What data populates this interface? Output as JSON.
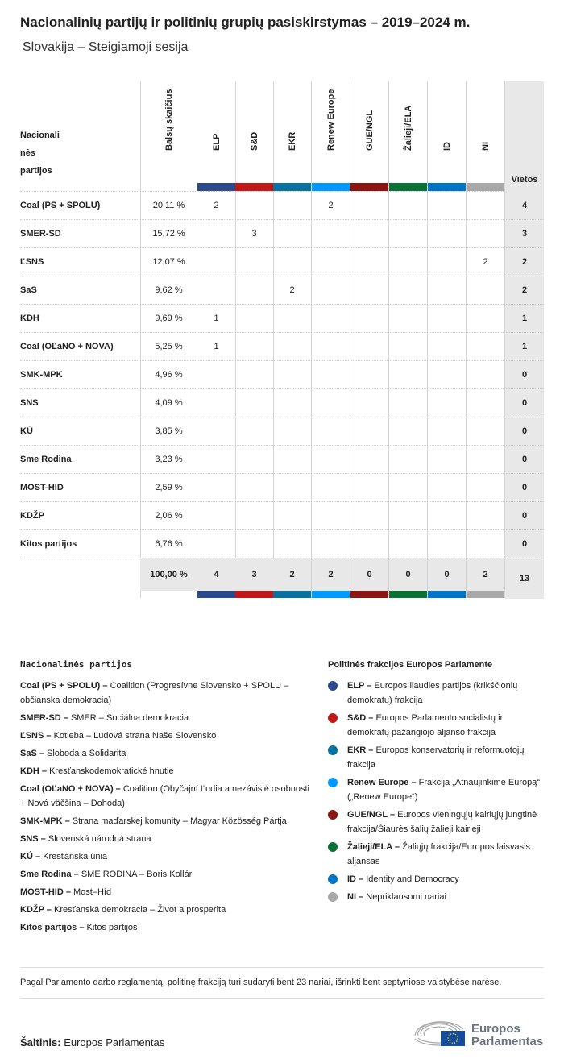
{
  "title": "Nacionalinių partijų ir politinių grupių pasiskirstymas – 2019–2024 m.",
  "subtitle": "Slovakija – Steigiamoji sesija",
  "table": {
    "header_party": "Nacionali nės partijos",
    "header_votes": "Balsų skaičius",
    "header_seats": "Vietos",
    "groups": [
      {
        "label": "ELP",
        "color": "#2b4a8c"
      },
      {
        "label": "S&D",
        "color": "#c1191a"
      },
      {
        "label": "EKR",
        "color": "#0a72a0"
      },
      {
        "label": "Renew Europe",
        "color": "#0099ff"
      },
      {
        "label": "GUE/NGL",
        "color": "#8a1513"
      },
      {
        "label": "Žalieji/ELA",
        "color": "#0a7235"
      },
      {
        "label": "ID",
        "color": "#0075c6"
      },
      {
        "label": "NI",
        "color": "#a8a8a8"
      }
    ],
    "rows": [
      {
        "party": "Coal (PS + SPOLU)",
        "votes": "20,11 %",
        "cells": [
          "2",
          "",
          "",
          "2",
          "",
          "",
          "",
          ""
        ],
        "seats": "4"
      },
      {
        "party": "SMER-SD",
        "votes": "15,72 %",
        "cells": [
          "",
          "3",
          "",
          "",
          "",
          "",
          "",
          ""
        ],
        "seats": "3"
      },
      {
        "party": "ĽSNS",
        "votes": "12,07 %",
        "cells": [
          "",
          "",
          "",
          "",
          "",
          "",
          "",
          "2"
        ],
        "seats": "2"
      },
      {
        "party": "SaS",
        "votes": "9,62 %",
        "cells": [
          "",
          "",
          "2",
          "",
          "",
          "",
          "",
          ""
        ],
        "seats": "2"
      },
      {
        "party": "KDH",
        "votes": "9,69 %",
        "cells": [
          "1",
          "",
          "",
          "",
          "",
          "",
          "",
          ""
        ],
        "seats": "1"
      },
      {
        "party": "Coal (OĽaNO + NOVA)",
        "votes": "5,25 %",
        "cells": [
          "1",
          "",
          "",
          "",
          "",
          "",
          "",
          ""
        ],
        "seats": "1"
      },
      {
        "party": "SMK-MPK",
        "votes": "4,96 %",
        "cells": [
          "",
          "",
          "",
          "",
          "",
          "",
          "",
          ""
        ],
        "seats": "0"
      },
      {
        "party": "SNS",
        "votes": "4,09 %",
        "cells": [
          "",
          "",
          "",
          "",
          "",
          "",
          "",
          ""
        ],
        "seats": "0"
      },
      {
        "party": "KÚ",
        "votes": "3,85 %",
        "cells": [
          "",
          "",
          "",
          "",
          "",
          "",
          "",
          ""
        ],
        "seats": "0"
      },
      {
        "party": "Sme Rodina",
        "votes": "3,23 %",
        "cells": [
          "",
          "",
          "",
          "",
          "",
          "",
          "",
          ""
        ],
        "seats": "0"
      },
      {
        "party": "MOST-HID",
        "votes": "2,59 %",
        "cells": [
          "",
          "",
          "",
          "",
          "",
          "",
          "",
          ""
        ],
        "seats": "0"
      },
      {
        "party": "KDŽP",
        "votes": "2,06 %",
        "cells": [
          "",
          "",
          "",
          "",
          "",
          "",
          "",
          ""
        ],
        "seats": "0"
      },
      {
        "party": "Kitos partijos",
        "votes": "6,76 %",
        "cells": [
          "",
          "",
          "",
          "",
          "",
          "",
          "",
          ""
        ],
        "seats": "0"
      }
    ],
    "totals": {
      "votes": "100,00 %",
      "cells": [
        "4",
        "3",
        "2",
        "2",
        "0",
        "0",
        "0",
        "2"
      ],
      "seats": "13"
    }
  },
  "legend_parties": {
    "title": "Nacionalinės partijos",
    "items": [
      {
        "abbr": "Coal (PS + SPOLU) –",
        "name": "Coalition (Progresívne Slovensko + SPOLU – občianska demokracia)"
      },
      {
        "abbr": "SMER-SD –",
        "name": "SMER – Sociálna demokracia"
      },
      {
        "abbr": "ĽSNS –",
        "name": "Kotleba – Ľudová strana Naše Slovensko"
      },
      {
        "abbr": "SaS –",
        "name": "Sloboda a Solidarita"
      },
      {
        "abbr": "KDH –",
        "name": "Kresťanskodemokratické hnutie"
      },
      {
        "abbr": "Coal (OĽaNO + NOVA) –",
        "name": "Coalition (Obyčajní Ľudia a nezávislé osobnosti + Nová väčšina – Dohoda)"
      },
      {
        "abbr": "SMK-MPK –",
        "name": "Strana maďarskej komunity – Magyar Közösség Pártja"
      },
      {
        "abbr": "SNS –",
        "name": "Slovenská národná strana"
      },
      {
        "abbr": "KÚ –",
        "name": "Kresťanská únia"
      },
      {
        "abbr": "Sme Rodina –",
        "name": "SME RODINA – Boris Kollár"
      },
      {
        "abbr": "MOST-HID –",
        "name": "Most–Híd"
      },
      {
        "abbr": "KDŽP –",
        "name": "Kresťanská demokracia – Život a prosperita"
      },
      {
        "abbr": "Kitos partijos –",
        "name": "Kitos partijos"
      }
    ]
  },
  "legend_groups": {
    "title": "Politinės frakcijos Europos Parlamente",
    "items": [
      {
        "abbr": "ELP –",
        "name": "Europos liaudies partijos (krikščionių demokratų) frakcija"
      },
      {
        "abbr": "S&D –",
        "name": "Europos Parlamento socialistų ir demokratų pažangiojo aljanso frakcija"
      },
      {
        "abbr": "EKR –",
        "name": "Europos konservatorių ir reformuotojų frakcija"
      },
      {
        "abbr": "Renew Europe –",
        "name": "Frakcija „Atnaujinkime Europą“ („Renew Europe“)"
      },
      {
        "abbr": "GUE/NGL –",
        "name": "Europos vieningųjų kairiųjų jungtinė frakcija/Šiaurės šalių žalieji kairieji"
      },
      {
        "abbr": "Žalieji/ELA –",
        "name": "Žaliųjų frakcija/Europos laisvasis aljansas"
      },
      {
        "abbr": "ID –",
        "name": "Identity and Democracy"
      },
      {
        "abbr": "NI –",
        "name": "Nepriklausomi nariai"
      }
    ]
  },
  "note": "Pagal Parlamento darbo reglamentą, politinę frakciją turi sudaryti bent 23 nariai, išrinkti bent septyniose valstybėse narėse.",
  "source_label": "Šaltinis:",
  "source": "Europos Parlamentas",
  "logo_text": "Europos Parlamentas"
}
